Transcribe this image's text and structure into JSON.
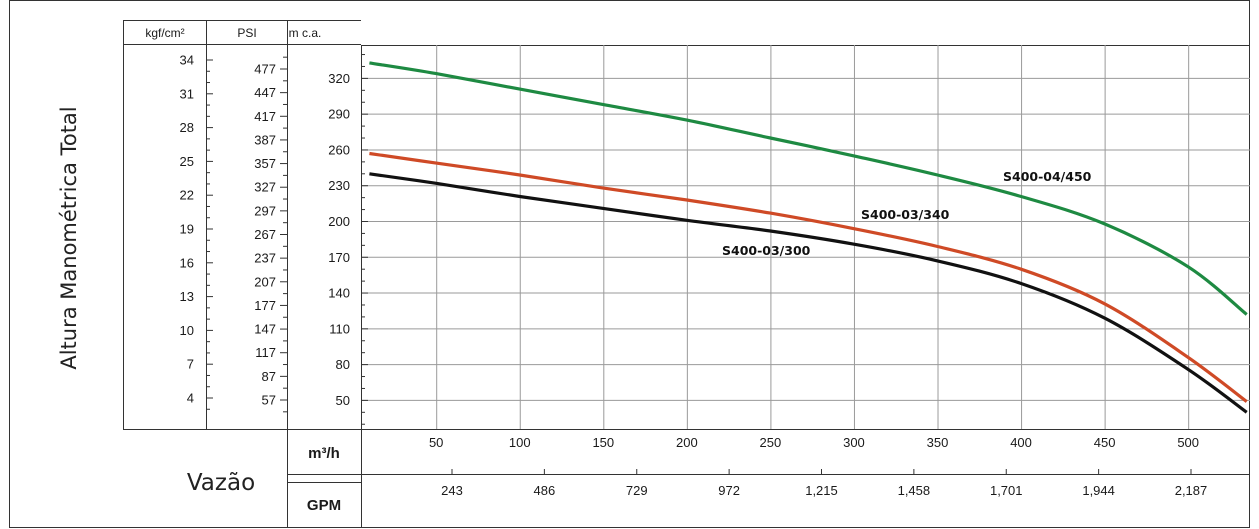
{
  "chart_data": {
    "type": "line",
    "ylabel": "Altura Manométrica Total",
    "xlabel": "Vazão",
    "x_axes": [
      {
        "unit": "m³/h",
        "range": [
          5,
          537
        ],
        "ticks": [
          50,
          100,
          150,
          200,
          250,
          300,
          350,
          400,
          450,
          500
        ]
      },
      {
        "unit": "GPM",
        "ticks": [
          "243",
          "486",
          "729",
          "972",
          "1,215",
          "1,458",
          "1,701",
          "1,944",
          "2,187"
        ]
      }
    ],
    "y_axes": [
      {
        "unit": "m c.a.",
        "range": [
          26,
          348
        ],
        "ticks": [
          50,
          80,
          110,
          140,
          170,
          200,
          230,
          260,
          290,
          320
        ]
      },
      {
        "unit": "PSI",
        "ticks": [
          57,
          87,
          117,
          147,
          177,
          207,
          237,
          267,
          297,
          327,
          357,
          387,
          417,
          447,
          477
        ]
      },
      {
        "unit": "kgf/cm²",
        "ticks": [
          4,
          7,
          10,
          13,
          16,
          19,
          22,
          25,
          28,
          31,
          34
        ]
      }
    ],
    "grid": true,
    "series": [
      {
        "name": "S400-04/450",
        "color": "#1e8a42",
        "x": [
          10,
          50,
          100,
          150,
          200,
          250,
          300,
          350,
          400,
          450,
          500,
          535
        ],
        "y": [
          333,
          324,
          311,
          298,
          285,
          270,
          255,
          239,
          221,
          198,
          162,
          122
        ]
      },
      {
        "name": "S400-03/340",
        "color": "#cf4a26",
        "x": [
          10,
          50,
          100,
          150,
          200,
          250,
          300,
          350,
          400,
          450,
          500,
          535
        ],
        "y": [
          257,
          249,
          239,
          228,
          218,
          207,
          194,
          179,
          160,
          131,
          86,
          49
        ]
      },
      {
        "name": "S400-03/300",
        "color": "#111111",
        "x": [
          10,
          50,
          100,
          150,
          200,
          250,
          300,
          350,
          400,
          450,
          500,
          535
        ],
        "y": [
          240,
          232,
          221,
          211,
          201,
          192,
          181,
          167,
          148,
          119,
          76,
          40
        ]
      }
    ]
  }
}
